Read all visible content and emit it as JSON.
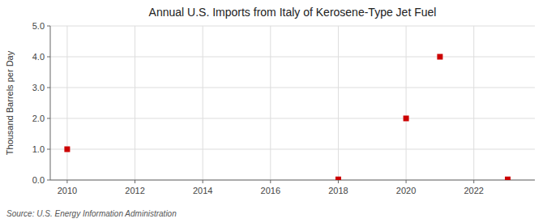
{
  "chart_data": {
    "type": "scatter",
    "title": "Annual U.S. Imports from Italy of Kerosene-Type Jet Fuel",
    "y_label": "Thousand Barrels per Day",
    "source": "Source: U.S. Energy Information Administration",
    "x": [
      2010,
      2018,
      2020,
      2021,
      2023
    ],
    "values": [
      1.0,
      0.02,
      2.0,
      4.0,
      0.02
    ],
    "color": "#cc0000",
    "marker": "square",
    "xlim": [
      2009.5,
      2023.8
    ],
    "ylim": [
      0.0,
      5.0
    ],
    "xticks": [
      2010,
      2012,
      2014,
      2016,
      2018,
      2020,
      2022
    ],
    "yticks": [
      {
        "value": 0.0,
        "label": "0.0"
      },
      {
        "value": 1.0,
        "label": "1.0"
      },
      {
        "value": 2.0,
        "label": "2.0"
      },
      {
        "value": 3.0,
        "label": "3.0"
      },
      {
        "value": 4.0,
        "label": "4.0"
      },
      {
        "value": 5.0,
        "label": "5.0"
      }
    ],
    "grid": true
  }
}
